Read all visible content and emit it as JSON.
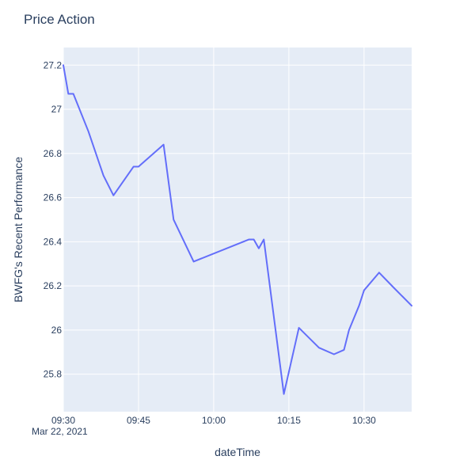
{
  "chart_data": {
    "type": "line",
    "title": "Price Action",
    "xlabel": "dateTime",
    "ylabel": "BWFG's Recent Performance",
    "date_label": "Mar 22, 2021",
    "x_tick_labels": [
      "09:30",
      "09:45",
      "10:00",
      "10:15",
      "10:30"
    ],
    "y_tick_labels": [
      "25.8",
      "26",
      "26.2",
      "26.4",
      "26.6",
      "26.8",
      "27",
      "27.2"
    ],
    "xlim": [
      "09:30",
      "10:39.5"
    ],
    "ylim": [
      25.63,
      27.28
    ],
    "grid": true,
    "colors": {
      "plot_bg": "#E5ECF6",
      "line": "#636EFA"
    },
    "series": [
      {
        "x": [
          "09:30",
          "09:31",
          "09:32",
          "09:35",
          "09:38",
          "09:40",
          "09:44",
          "09:45",
          "09:50",
          "09:52",
          "09:56",
          "10:07",
          "10:08",
          "10:09",
          "10:10",
          "10:14",
          "10:17",
          "10:21",
          "10:24",
          "10:26",
          "10:27",
          "10:29",
          "10:30",
          "10:33",
          "10:36",
          "10:39.5"
        ],
        "values": [
          27.2,
          27.07,
          27.07,
          26.9,
          26.7,
          26.61,
          26.74,
          26.74,
          26.84,
          26.5,
          26.31,
          26.41,
          26.41,
          26.37,
          26.41,
          25.71,
          26.01,
          25.92,
          25.89,
          25.91,
          26.0,
          26.11,
          26.18,
          26.26,
          26.19,
          26.11
        ]
      }
    ]
  }
}
